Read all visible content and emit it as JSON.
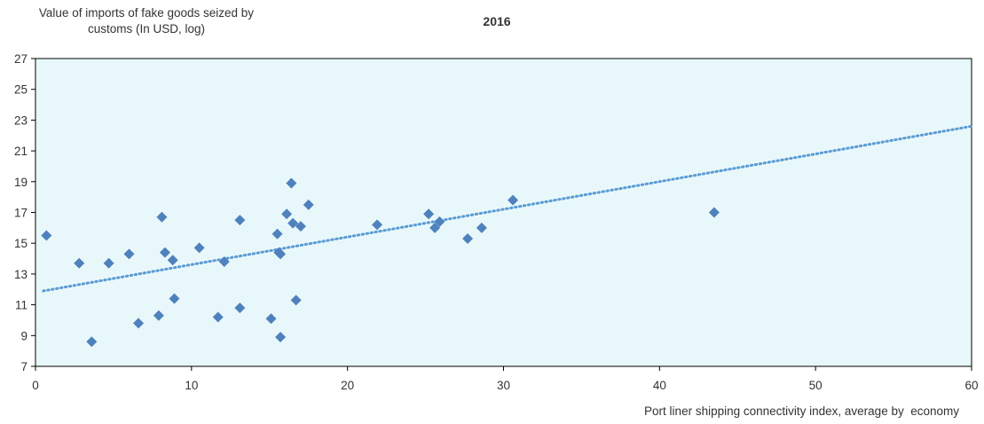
{
  "chart_data": {
    "type": "scatter",
    "title": "2016",
    "ylabel": "Value of imports of fake goods seized by customs (In USD, log)",
    "xlabel": "Port liner shipping connectivity index, average by  economy",
    "xlim": [
      0,
      60
    ],
    "ylim": [
      7,
      27
    ],
    "xticks": [
      0,
      10,
      20,
      30,
      40,
      50,
      60
    ],
    "yticks": [
      7,
      9,
      11,
      13,
      15,
      17,
      19,
      21,
      23,
      25,
      27
    ],
    "grid": false,
    "legend": "none",
    "colors": {
      "plot_bg": "#E8F8FA",
      "marker": "#4F81BD",
      "trend": "#5B9BD5",
      "axis": "#000000"
    },
    "points": [
      {
        "x": 0.7,
        "y": 15.5
      },
      {
        "x": 2.8,
        "y": 13.7
      },
      {
        "x": 3.6,
        "y": 8.6
      },
      {
        "x": 4.7,
        "y": 13.7
      },
      {
        "x": 6.0,
        "y": 14.3
      },
      {
        "x": 6.6,
        "y": 9.8
      },
      {
        "x": 7.9,
        "y": 10.3
      },
      {
        "x": 8.1,
        "y": 16.7
      },
      {
        "x": 8.3,
        "y": 14.4
      },
      {
        "x": 8.8,
        "y": 13.9
      },
      {
        "x": 8.9,
        "y": 11.4
      },
      {
        "x": 10.5,
        "y": 14.7
      },
      {
        "x": 11.7,
        "y": 10.2
      },
      {
        "x": 12.1,
        "y": 13.8
      },
      {
        "x": 13.1,
        "y": 16.5
      },
      {
        "x": 13.1,
        "y": 10.8
      },
      {
        "x": 15.1,
        "y": 10.1
      },
      {
        "x": 15.5,
        "y": 15.6
      },
      {
        "x": 15.6,
        "y": 14.4
      },
      {
        "x": 15.7,
        "y": 14.3
      },
      {
        "x": 15.7,
        "y": 8.9
      },
      {
        "x": 16.1,
        "y": 16.9
      },
      {
        "x": 16.4,
        "y": 18.9
      },
      {
        "x": 16.5,
        "y": 16.3
      },
      {
        "x": 16.7,
        "y": 11.3
      },
      {
        "x": 17.0,
        "y": 16.1
      },
      {
        "x": 17.5,
        "y": 17.5
      },
      {
        "x": 21.9,
        "y": 16.2
      },
      {
        "x": 25.2,
        "y": 16.9
      },
      {
        "x": 25.6,
        "y": 16.0
      },
      {
        "x": 25.9,
        "y": 16.4
      },
      {
        "x": 27.7,
        "y": 15.3
      },
      {
        "x": 28.6,
        "y": 16.0
      },
      {
        "x": 30.6,
        "y": 17.8
      },
      {
        "x": 43.5,
        "y": 17.0
      }
    ],
    "trendline": {
      "style": "dotted",
      "from": {
        "x": 0.5,
        "y": 11.9
      },
      "to": {
        "x": 60,
        "y": 22.6
      }
    }
  }
}
